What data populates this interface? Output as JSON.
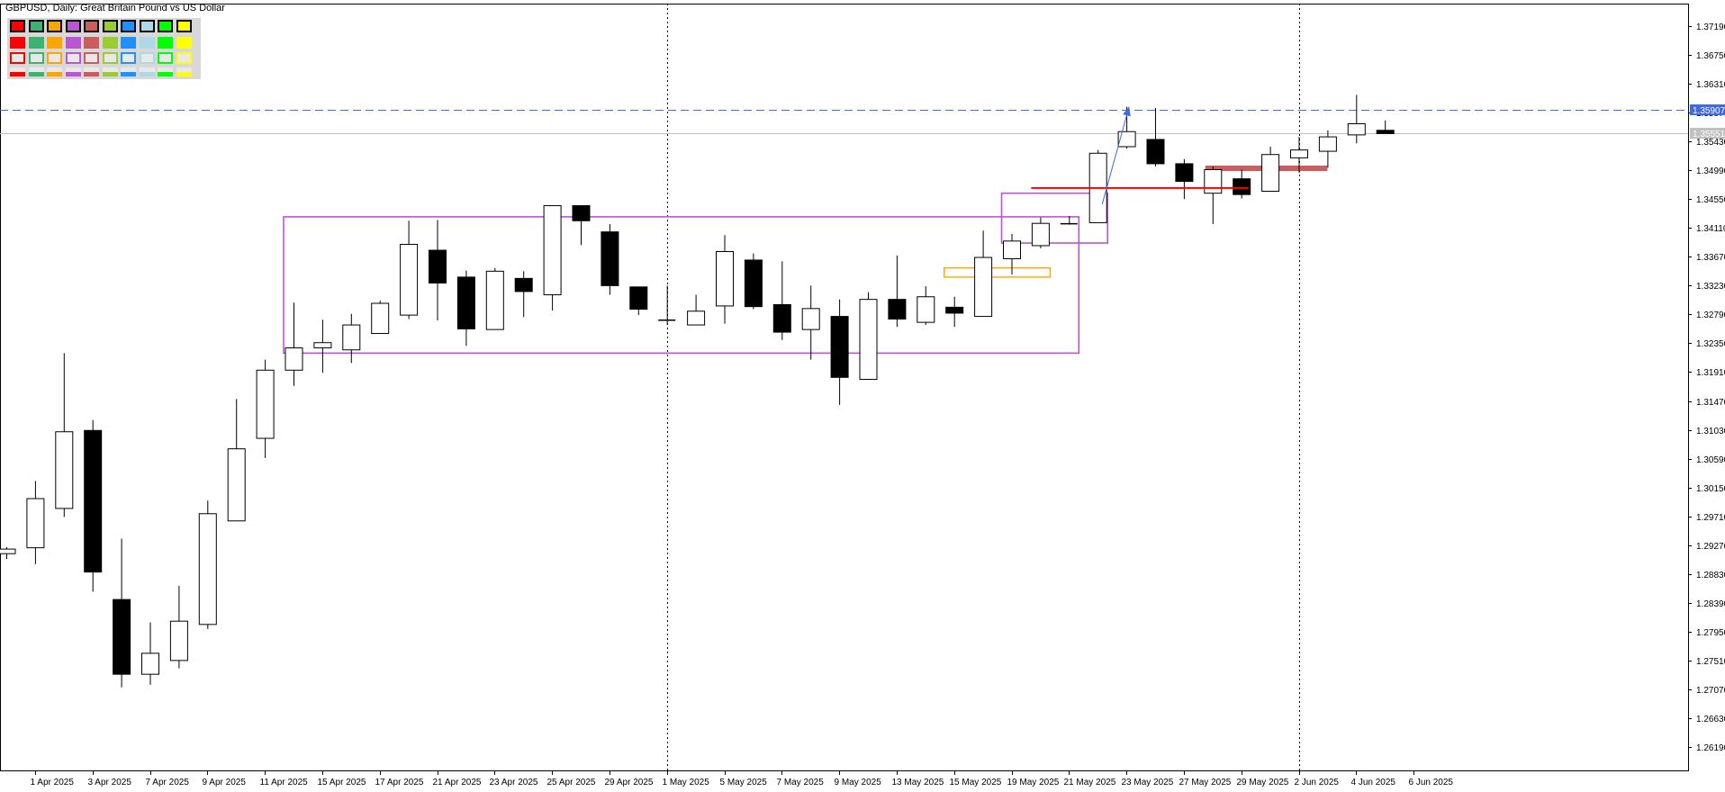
{
  "title": "GBPUSD, Daily:  Great Britain Pound vs US Dollar",
  "palette": {
    "row_colors": [
      "#ff0000",
      "#3cb371",
      "#ffa500",
      "#ba55d3",
      "#cd5c5c",
      "#9acd32",
      "#1e90ff",
      "#add8e6",
      "#00ff00",
      "#ffff00"
    ],
    "rows": [
      "selected-swatch",
      "filled-swatch",
      "outlined-swatch",
      "underline-swatch"
    ]
  },
  "price_labels": {
    "blue_line": {
      "text": "1.35907",
      "value": 1.35907,
      "color": "#4169e1"
    },
    "gray_line": {
      "text": "1.35551",
      "value": 1.35551,
      "color": "#c0c0c0"
    }
  },
  "chart_data": {
    "type": "candlestick",
    "title": "GBPUSD, Daily:  Great Britain Pound vs US Dollar",
    "ylim": [
      1.258,
      1.375
    ],
    "y_ticks": [
      "1.37190",
      "1.36750",
      "1.36310",
      "1.35870",
      "1.35430",
      "1.34990",
      "1.34550",
      "1.34110",
      "1.33670",
      "1.33230",
      "1.32790",
      "1.32350",
      "1.31910",
      "1.31470",
      "1.31030",
      "1.30590",
      "1.30150",
      "1.29710",
      "1.29270",
      "1.28830",
      "1.28390",
      "1.27950",
      "1.27510",
      "1.27070",
      "1.26630",
      "1.26190"
    ],
    "x_tick_labels": [
      "1 Apr 2025",
      "3 Apr 2025",
      "7 Apr 2025",
      "9 Apr 2025",
      "11 Apr 2025",
      "15 Apr 2025",
      "17 Apr 2025",
      "21 Apr 2025",
      "23 Apr 2025",
      "25 Apr 2025",
      "29 Apr 2025",
      "1 May 2025",
      "5 May 2025",
      "7 May 2025",
      "9 May 2025",
      "13 May 2025",
      "15 May 2025",
      "19 May 2025",
      "21 May 2025",
      "23 May 2025",
      "27 May 2025",
      "29 May 2025",
      "2 Jun 2025",
      "4 Jun 2025",
      "6 Jun 2025"
    ],
    "candles": [
      {
        "date": "31 Mar 2025",
        "open": 1.2914,
        "high": 1.2924,
        "low": 1.2906,
        "close": 1.2921
      },
      {
        "date": "1 Apr 2025",
        "open": 1.2923,
        "high": 1.3025,
        "low": 1.2898,
        "close": 1.2998
      },
      {
        "date": "2 Apr 2025",
        "open": 1.2983,
        "high": 1.322,
        "low": 1.297,
        "close": 1.31
      },
      {
        "date": "3 Apr 2025",
        "open": 1.3102,
        "high": 1.3118,
        "low": 1.2856,
        "close": 1.2886
      },
      {
        "date": "4 Apr 2025",
        "open": 1.2844,
        "high": 1.2937,
        "low": 1.271,
        "close": 1.273
      },
      {
        "date": "7 Apr 2025",
        "open": 1.273,
        "high": 1.2809,
        "low": 1.2714,
        "close": 1.2762
      },
      {
        "date": "8 Apr 2025",
        "open": 1.2751,
        "high": 1.2865,
        "low": 1.2739,
        "close": 1.2811
      },
      {
        "date": "9 Apr 2025",
        "open": 1.2806,
        "high": 1.2995,
        "low": 1.2799,
        "close": 1.2975
      },
      {
        "date": "10 Apr 2025",
        "open": 1.2964,
        "high": 1.315,
        "low": 1.2964,
        "close": 1.3074
      },
      {
        "date": "11 Apr 2025",
        "open": 1.309,
        "high": 1.321,
        "low": 1.306,
        "close": 1.3194
      },
      {
        "date": "14 Apr 2025",
        "open": 1.3194,
        "high": 1.3297,
        "low": 1.317,
        "close": 1.3228
      },
      {
        "date": "15 Apr 2025",
        "open": 1.3228,
        "high": 1.3271,
        "low": 1.319,
        "close": 1.3236
      },
      {
        "date": "16 Apr 2025",
        "open": 1.3225,
        "high": 1.328,
        "low": 1.3205,
        "close": 1.3263
      },
      {
        "date": "17 Apr 2025",
        "open": 1.325,
        "high": 1.33,
        "low": 1.325,
        "close": 1.3296
      },
      {
        "date": "18 Apr 2025",
        "open": 1.3278,
        "high": 1.3422,
        "low": 1.3272,
        "close": 1.3386
      },
      {
        "date": "21 Apr 2025",
        "open": 1.3377,
        "high": 1.3423,
        "low": 1.327,
        "close": 1.3327
      },
      {
        "date": "22 Apr 2025",
        "open": 1.3336,
        "high": 1.3346,
        "low": 1.3231,
        "close": 1.3257
      },
      {
        "date": "23 Apr 2025",
        "open": 1.3256,
        "high": 1.335,
        "low": 1.3256,
        "close": 1.3345
      },
      {
        "date": "24 Apr 2025",
        "open": 1.3334,
        "high": 1.3345,
        "low": 1.3275,
        "close": 1.3314
      },
      {
        "date": "25 Apr 2025",
        "open": 1.3309,
        "high": 1.3445,
        "low": 1.3285,
        "close": 1.3445
      },
      {
        "date": "28 Apr 2025",
        "open": 1.3445,
        "high": 1.3445,
        "low": 1.3385,
        "close": 1.3422
      },
      {
        "date": "29 Apr 2025",
        "open": 1.3405,
        "high": 1.3417,
        "low": 1.3309,
        "close": 1.3323
      },
      {
        "date": "30 Apr 2025",
        "open": 1.3321,
        "high": 1.3321,
        "low": 1.3278,
        "close": 1.3287
      },
      {
        "date": "1 May 2025",
        "open": 1.3271,
        "high": 1.3323,
        "low": 1.3263,
        "close": 1.3271
      },
      {
        "date": "2 May 2025",
        "open": 1.3263,
        "high": 1.3309,
        "low": 1.3263,
        "close": 1.3284
      },
      {
        "date": "5 May 2025",
        "open": 1.3292,
        "high": 1.34,
        "low": 1.3265,
        "close": 1.3375
      },
      {
        "date": "6 May 2025",
        "open": 1.3362,
        "high": 1.3372,
        "low": 1.3287,
        "close": 1.3291
      },
      {
        "date": "7 May 2025",
        "open": 1.3294,
        "high": 1.336,
        "low": 1.324,
        "close": 1.3252
      },
      {
        "date": "8 May 2025",
        "open": 1.3256,
        "high": 1.3323,
        "low": 1.321,
        "close": 1.3288
      },
      {
        "date": "9 May 2025",
        "open": 1.3276,
        "high": 1.3302,
        "low": 1.3141,
        "close": 1.3183
      },
      {
        "date": "12 May 2025",
        "open": 1.318,
        "high": 1.3313,
        "low": 1.318,
        "close": 1.3302
      },
      {
        "date": "13 May 2025",
        "open": 1.3302,
        "high": 1.3369,
        "low": 1.326,
        "close": 1.3272
      },
      {
        "date": "14 May 2025",
        "open": 1.3267,
        "high": 1.3322,
        "low": 1.3263,
        "close": 1.3306
      },
      {
        "date": "15 May 2025",
        "open": 1.329,
        "high": 1.3306,
        "low": 1.326,
        "close": 1.3281
      },
      {
        "date": "16 May 2025",
        "open": 1.3276,
        "high": 1.3407,
        "low": 1.3276,
        "close": 1.3366
      },
      {
        "date": "19 May 2025",
        "open": 1.3364,
        "high": 1.3402,
        "low": 1.334,
        "close": 1.3391
      },
      {
        "date": "20 May 2025",
        "open": 1.3384,
        "high": 1.3427,
        "low": 1.338,
        "close": 1.3418
      },
      {
        "date": "21 May 2025",
        "open": 1.3418,
        "high": 1.3429,
        "low": 1.3416,
        "close": 1.3417
      },
      {
        "date": "22 May 2025",
        "open": 1.3419,
        "high": 1.353,
        "low": 1.3419,
        "close": 1.3525
      },
      {
        "date": "23 May 2025",
        "open": 1.3535,
        "high": 1.3596,
        "low": 1.3532,
        "close": 1.3558
      },
      {
        "date": "26 May 2025",
        "open": 1.3546,
        "high": 1.3594,
        "low": 1.3505,
        "close": 1.3509
      },
      {
        "date": "27 May 2025",
        "open": 1.3509,
        "high": 1.3516,
        "low": 1.3455,
        "close": 1.3482
      },
      {
        "date": "28 May 2025",
        "open": 1.3464,
        "high": 1.3505,
        "low": 1.3417,
        "close": 1.35
      },
      {
        "date": "29 May 2025",
        "open": 1.3486,
        "high": 1.35,
        "low": 1.3456,
        "close": 1.3462
      },
      {
        "date": "30 May 2025",
        "open": 1.3467,
        "high": 1.3535,
        "low": 1.3467,
        "close": 1.3523
      },
      {
        "date": "2 Jun 2025",
        "open": 1.3518,
        "high": 1.355,
        "low": 1.3495,
        "close": 1.353
      },
      {
        "date": "3 Jun 2025",
        "open": 1.3528,
        "high": 1.356,
        "low": 1.3503,
        "close": 1.355
      },
      {
        "date": "4 Jun 2025",
        "open": 1.3553,
        "high": 1.3614,
        "low": 1.354,
        "close": 1.357
      },
      {
        "date": "5 Jun 2025",
        "open": 1.356,
        "high": 1.3575,
        "low": 1.3555,
        "close": 1.3555
      }
    ],
    "x_tick_indices": [
      1,
      3,
      5,
      7,
      9,
      11,
      13,
      15,
      17,
      19,
      21,
      23,
      25,
      27,
      29,
      31,
      33,
      35,
      37,
      39,
      41,
      43,
      45,
      47,
      49
    ],
    "period_separators": [
      23,
      45
    ],
    "horizontal_lines": [
      {
        "name": "blue-dashed-level",
        "value": 1.35907,
        "color": "#4169e1",
        "style": "dashed"
      },
      {
        "name": "gray-level",
        "value": 1.35551,
        "color": "#c0c0c0",
        "style": "solid"
      }
    ],
    "objects": [
      {
        "name": "range-rectangle",
        "type": "rect",
        "from": 10,
        "to": 37,
        "low": 1.322,
        "high": 1.3428,
        "color": "#ba55d3",
        "fill": "none",
        "width": 1.6
      },
      {
        "name": "breakout-rectangle",
        "type": "rect",
        "from": 35,
        "to": 38,
        "low": 1.3388,
        "high": 1.3464,
        "color": "#ba55d3",
        "fill": "none",
        "width": 1.6
      },
      {
        "name": "orange-zone",
        "type": "rect",
        "from": 33,
        "to": 36,
        "low": 1.3336,
        "high": 1.335,
        "color": "#ffa500",
        "fill": "none",
        "width": 1.4
      },
      {
        "name": "red-level-line",
        "type": "segment",
        "from": 36,
        "to": 43,
        "value": 1.3472,
        "color": "#ff0000",
        "width": 2
      },
      {
        "name": "indianred-zone",
        "type": "band",
        "from": 42,
        "to": 46,
        "value": 1.3502,
        "color": "#cd5c5c",
        "width": 6
      },
      {
        "name": "blue-projection-arrow",
        "type": "arrow",
        "from": 38,
        "to": 39,
        "from_value": 1.3447,
        "to_value": 1.3596,
        "color": "#4169e1"
      }
    ]
  }
}
